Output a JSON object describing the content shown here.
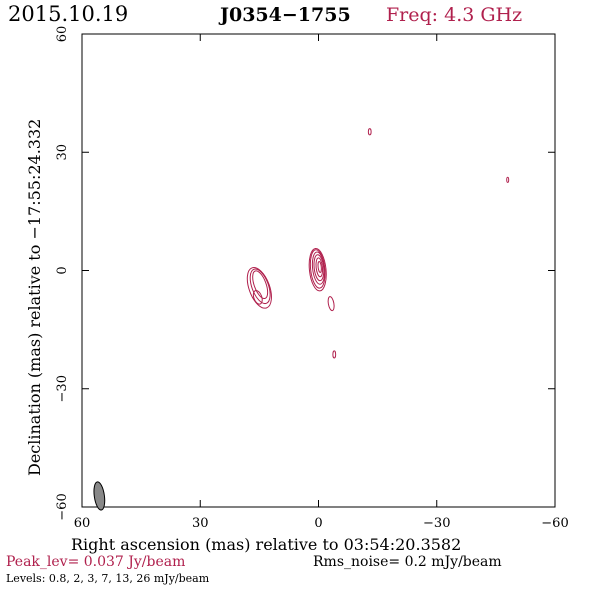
{
  "header": {
    "date": "2015.10.19",
    "source": "J0354−1755",
    "freq": "Freq: 4.3 GHz"
  },
  "footer": {
    "peak": "Peak_lev=  0.037 Jy/beam",
    "rms": "Rms_noise=  0.2 mJy/beam",
    "levels": "Levels: 0.8,   2,   3,   7,  13,  26 mJy/beam"
  },
  "colors": {
    "accent": "#b0204d",
    "axis": "#000000",
    "beam": "#888888"
  },
  "chart_data": {
    "type": "contour",
    "xlabel": "Right ascension (mas) relative to 03:54:20.3582",
    "ylabel": "Declination (mas) relative to −17:55:24.332",
    "xlim": [
      60,
      -60
    ],
    "ylim": [
      -60,
      60
    ],
    "x_ticks": [
      {
        "value": 60,
        "label": "60"
      },
      {
        "value": 30,
        "label": "30"
      },
      {
        "value": 0,
        "label": "0"
      },
      {
        "value": -30,
        "label": "−30"
      },
      {
        "value": -60,
        "label": "−60"
      }
    ],
    "y_ticks": [
      {
        "value": -60,
        "label": "−60"
      },
      {
        "value": -30,
        "label": "−30"
      },
      {
        "value": 0,
        "label": "0"
      },
      {
        "value": 30,
        "label": "30"
      },
      {
        "value": 60,
        "label": "60"
      }
    ],
    "contours": [
      {
        "component": "core",
        "cx": 0.2,
        "cy": 0.2,
        "rx": 2.1,
        "ry": 5.4,
        "rot": -6
      },
      {
        "component": "core",
        "cx": 0.2,
        "cy": 0.4,
        "rx": 1.8,
        "ry": 4.9,
        "rot": -6
      },
      {
        "component": "core",
        "cx": 0.0,
        "cy": 0.6,
        "rx": 1.5,
        "ry": 4.1,
        "rot": -6
      },
      {
        "component": "core",
        "cx": -0.1,
        "cy": 0.7,
        "rx": 1.2,
        "ry": 3.3,
        "rot": -6
      },
      {
        "component": "core",
        "cx": -0.2,
        "cy": 0.8,
        "rx": 0.8,
        "ry": 2.4,
        "rot": -6
      },
      {
        "component": "core",
        "cx": -0.3,
        "cy": 0.9,
        "rx": 0.4,
        "ry": 1.4,
        "rot": -6
      },
      {
        "component": "jet",
        "cx": 15.0,
        "cy": -4.4,
        "rx": 2.6,
        "ry": 5.4,
        "rot": -20
      },
      {
        "component": "jet",
        "cx": 14.8,
        "cy": -4.0,
        "rx": 2.1,
        "ry": 4.6,
        "rot": -20
      },
      {
        "component": "jet",
        "cx": 14.8,
        "cy": -3.6,
        "rx": 1.5,
        "ry": 3.7,
        "rot": -20
      },
      {
        "component": "jet",
        "cx": 15.4,
        "cy": -6.8,
        "rx": 1.0,
        "ry": 1.8,
        "rot": -20
      },
      {
        "component": "knot",
        "cx": -3.2,
        "cy": -8.4,
        "rx": 0.7,
        "ry": 1.8,
        "rot": -10
      },
      {
        "component": "knot",
        "cx": -4.0,
        "cy": -21.3,
        "rx": 0.35,
        "ry": 0.9,
        "rot": 0
      },
      {
        "component": "knot",
        "cx": -13.0,
        "cy": 35.2,
        "rx": 0.35,
        "ry": 0.8,
        "rot": 0
      },
      {
        "component": "knot",
        "cx": -48.0,
        "cy": 23.0,
        "rx": 0.25,
        "ry": 0.65,
        "rot": 0
      }
    ],
    "beam": {
      "cx": 55.6,
      "cy": -57.2,
      "rx": 0.8,
      "ry": 1.9,
      "rot": -8
    }
  }
}
